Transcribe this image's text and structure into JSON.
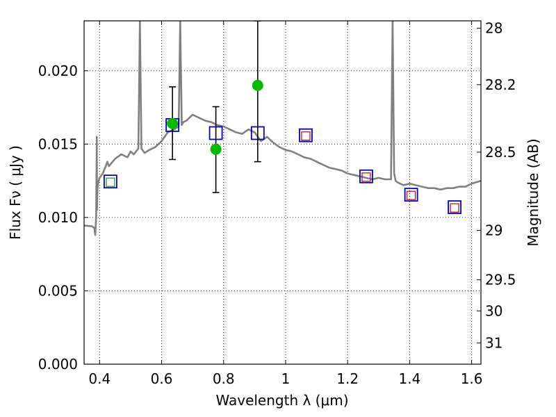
{
  "chart_data": {
    "type": "scatter",
    "xlabel": "Wavelength  λ (μm)",
    "ylabel": "Flux  Fν  ( μJy )",
    "ylabel_right": "Magnitude (AB)",
    "xlim": [
      0.35,
      1.63
    ],
    "ylim": [
      0.0,
      0.0234
    ],
    "grid": true,
    "x_ticks": [
      0.4,
      0.6,
      0.8,
      1.0,
      1.2,
      1.4,
      1.6
    ],
    "x_tick_labels": [
      "0.4",
      "0.6",
      "0.8",
      "1",
      "1.2",
      "1.4",
      "1.6"
    ],
    "y_ticks": [
      0.0,
      0.005,
      0.01,
      0.015,
      0.02
    ],
    "y_tick_labels": [
      "0.000",
      "0.005",
      "0.010",
      "0.015",
      "0.020"
    ],
    "right_ticks": [
      {
        "label": "28",
        "flux": 0.0229
      },
      {
        "label": "28.2",
        "flux": 0.01905
      },
      {
        "label": "28.5",
        "flux": 0.01445
      },
      {
        "label": "29",
        "flux": 0.00912
      },
      {
        "label": "29.5",
        "flux": 0.00575
      },
      {
        "label": "30",
        "flux": 0.00363
      },
      {
        "label": "31",
        "flux": 0.00145
      }
    ],
    "series": [
      {
        "marker": "line",
        "color": "#808080",
        "x": [
          0.35,
          0.375,
          0.383,
          0.386,
          0.389,
          0.3905,
          0.391,
          0.3915,
          0.393,
          0.396,
          0.4,
          0.41,
          0.42,
          0.425,
          0.43,
          0.45,
          0.47,
          0.49,
          0.5,
          0.51,
          0.525,
          0.53,
          0.535,
          0.545,
          0.56,
          0.58,
          0.6,
          0.62,
          0.64,
          0.655,
          0.66,
          0.665,
          0.67,
          0.68,
          0.7,
          0.72,
          0.74,
          0.76,
          0.78,
          0.8,
          0.82,
          0.84,
          0.86,
          0.88,
          0.9,
          0.92,
          0.94,
          0.96,
          0.98,
          1.0,
          1.02,
          1.04,
          1.06,
          1.08,
          1.1,
          1.12,
          1.14,
          1.16,
          1.18,
          1.2,
          1.22,
          1.24,
          1.26,
          1.28,
          1.3,
          1.32,
          1.34,
          1.345,
          1.35,
          1.355,
          1.36,
          1.38,
          1.4,
          1.42,
          1.44,
          1.46,
          1.48,
          1.5,
          1.52,
          1.54,
          1.56,
          1.58,
          1.6,
          1.63
        ],
        "y": [
          0.00945,
          0.0094,
          0.0093,
          0.0088,
          0.0101,
          0.0145,
          0.0155,
          0.0105,
          0.012,
          0.0124,
          0.0127,
          0.013,
          0.0135,
          0.0138,
          0.0135,
          0.014,
          0.0143,
          0.0141,
          0.0145,
          0.0143,
          0.0147,
          0.0234,
          0.0147,
          0.0144,
          0.0146,
          0.0148,
          0.0152,
          0.0158,
          0.016,
          0.0162,
          0.0234,
          0.0163,
          0.0165,
          0.0166,
          0.017,
          0.0168,
          0.0166,
          0.0165,
          0.0163,
          0.0162,
          0.016,
          0.0158,
          0.0157,
          0.016,
          0.0158,
          0.0152,
          0.0155,
          0.0151,
          0.0148,
          0.0146,
          0.0145,
          0.0143,
          0.0141,
          0.014,
          0.0138,
          0.0136,
          0.0134,
          0.0133,
          0.0132,
          0.013,
          0.0129,
          0.0128,
          0.0127,
          0.0126,
          0.0127,
          0.0126,
          0.0126,
          0.0234,
          0.013,
          0.0125,
          0.0124,
          0.0122,
          0.0123,
          0.0122,
          0.0121,
          0.012,
          0.012,
          0.0119,
          0.012,
          0.012,
          0.0121,
          0.0121,
          0.0123,
          0.0125
        ]
      },
      {
        "marker": "square",
        "color": "#0000cc",
        "x": [
          0.435,
          0.635,
          0.775,
          0.91,
          1.065,
          1.26,
          1.405,
          1.545
        ],
        "y": [
          0.01245,
          0.0163,
          0.01575,
          0.01575,
          0.0156,
          0.0128,
          0.01155,
          0.0107
        ]
      },
      {
        "marker": "square",
        "color": "#33aa33",
        "x": [
          0.435
        ],
        "y": [
          0.0124
        ]
      },
      {
        "marker": "square",
        "color": "#cc2222",
        "x": [
          1.065,
          1.26,
          1.405,
          1.545
        ],
        "y": [
          0.01555,
          0.01275,
          0.0115,
          0.01065
        ]
      },
      {
        "marker": "circle-errorbar",
        "color": "#00bb00",
        "x": [
          0.635,
          0.775,
          0.91
        ],
        "y": [
          0.0164,
          0.01465,
          0.019
        ],
        "y_err_low": [
          0.01395,
          0.0117,
          0.0138
        ],
        "y_err_high": [
          0.0189,
          0.01755,
          0.0234
        ]
      }
    ]
  }
}
